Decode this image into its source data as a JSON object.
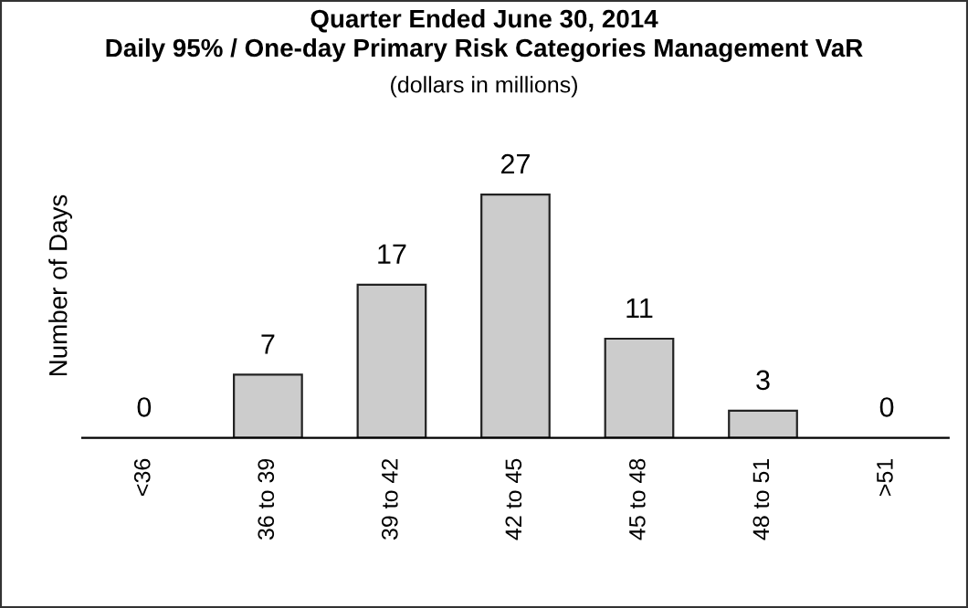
{
  "chart_data": {
    "type": "bar",
    "title": "Quarter Ended June 30, 2014\nDaily 95% / One-day Primary Risk Categories Management VaR",
    "subtitle": "(dollars in millions)",
    "ylabel": "Number of Days",
    "categories": [
      "<36",
      "36 to 39",
      "39 to 42",
      "42 to 45",
      "45 to 48",
      "48 to 51",
      ">51"
    ],
    "values": [
      0,
      7,
      17,
      27,
      11,
      3,
      0
    ],
    "color": "#cccccc",
    "data_labels": true,
    "tick_labels": "x",
    "grid": false,
    "legend": false
  }
}
